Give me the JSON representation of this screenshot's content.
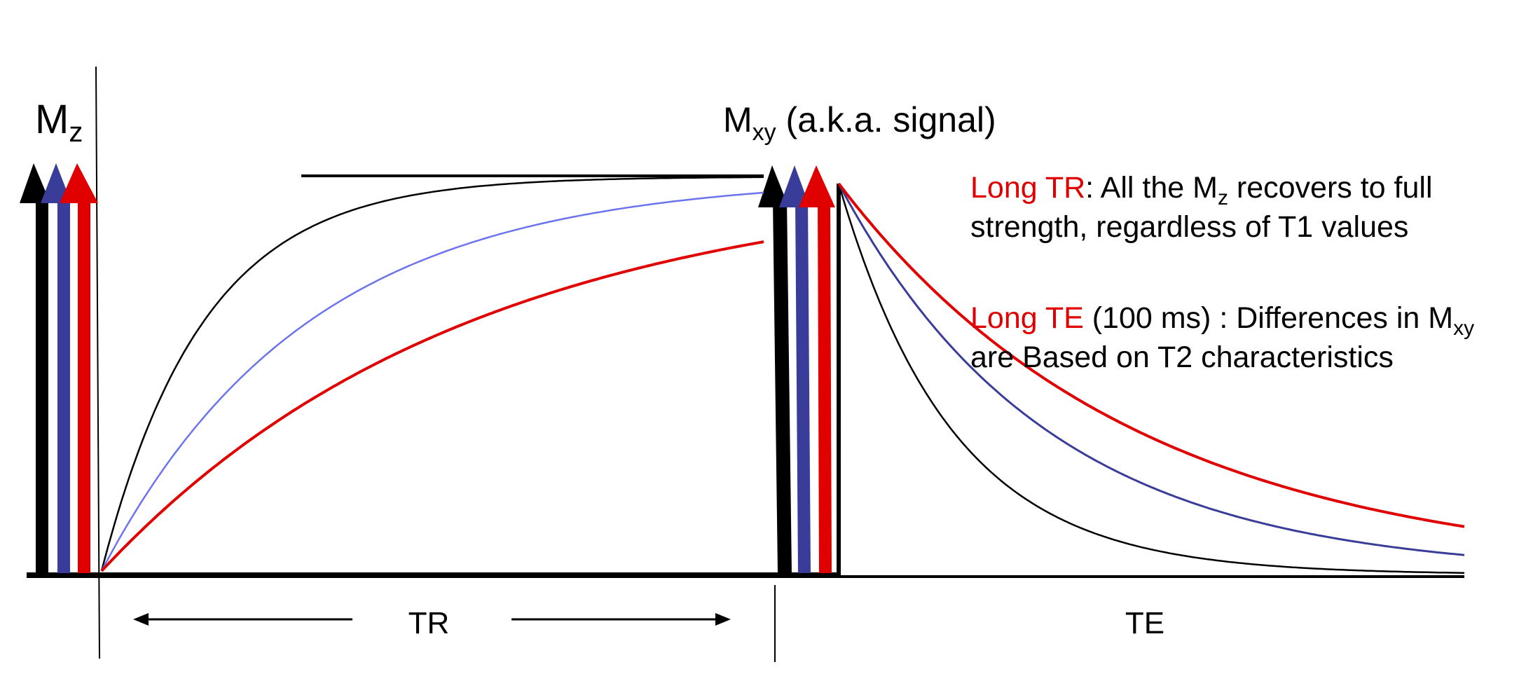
{
  "labels": {
    "mz_main": "M",
    "mz_sub": "z",
    "mxy_main": "M",
    "mxy_sub": "xy",
    "mxy_rest": " (a.k.a. signal)",
    "tr": "TR",
    "te": "TE"
  },
  "notes": {
    "tr_highlight": "Long TR",
    "tr_text_1": ":  All the M",
    "tr_sub": "z",
    "tr_text_2": " recovers to full strength, regardless of T1 values",
    "te_highlight": "Long TE",
    "te_text_1": " (100 ms) :  Differences in M",
    "te_sub": "xy",
    "te_text_2": " are Based on T2 characteristics"
  },
  "colors": {
    "black": "#000000",
    "blue": "#3a3c9a",
    "light_blue": "#6b74ee",
    "red": "#e00000"
  },
  "curves": {
    "t1_recovery_rates": [
      6.5,
      3.2,
      1.8
    ],
    "t2_decay_rates": [
      5.5,
      3.0,
      2.1
    ]
  }
}
